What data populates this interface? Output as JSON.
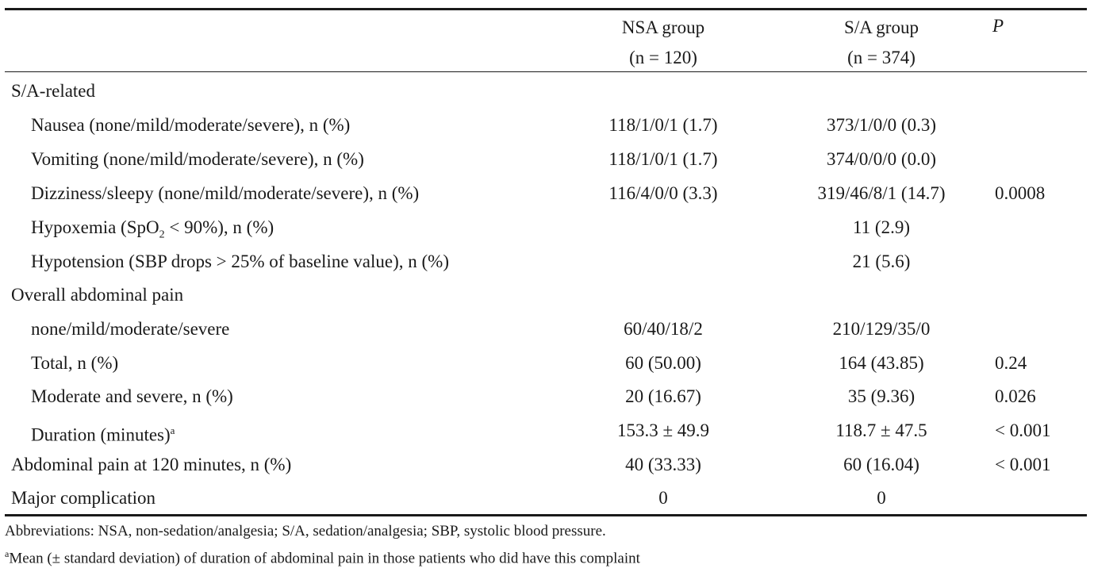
{
  "columns": {
    "nsa_line1": "NSA group",
    "nsa_line2": "(n = 120)",
    "sa_line1": "S/A group",
    "sa_line2": "(n = 374)",
    "p": "P"
  },
  "rows": [
    {
      "label": "S/A-related",
      "nsa": "",
      "sa": "",
      "p": ""
    },
    {
      "label": "Nausea (none/mild/moderate/severe), n (%)",
      "nsa": "118/1/0/1 (1.7)",
      "sa": "373/1/0/0 (0.3)",
      "p": ""
    },
    {
      "label": "Vomiting (none/mild/moderate/severe), n (%)",
      "nsa": "118/1/0/1 (1.7)",
      "sa": "374/0/0/0 (0.0)",
      "p": ""
    },
    {
      "label": "Dizziness/sleepy (none/mild/moderate/severe), n (%)",
      "nsa": "116/4/0/0 (3.3)",
      "sa": "319/46/8/1 (14.7)",
      "p": "0.0008"
    },
    {
      "label_pre": "Hypoxemia (SpO",
      "label_sub": "2",
      "label_post": " < 90%), n (%)",
      "nsa": "",
      "sa": "11 (2.9)",
      "p": ""
    },
    {
      "label": "Hypotension (SBP drops > 25% of baseline value), n (%)",
      "nsa": "",
      "sa": "21 (5.6)",
      "p": ""
    },
    {
      "label": "Overall abdominal pain",
      "nsa": "",
      "sa": "",
      "p": ""
    },
    {
      "label": "none/mild/moderate/severe",
      "nsa": "60/40/18/2",
      "sa": "210/129/35/0",
      "p": ""
    },
    {
      "label": "Total, n (%)",
      "nsa": "60 (50.00)",
      "sa": "164 (43.85)",
      "p": "0.24"
    },
    {
      "label": "Moderate and severe, n (%)",
      "nsa": "20 (16.67)",
      "sa": "35 (9.36)",
      "p": "0.026"
    },
    {
      "label": "Duration (minutes)",
      "label_sup": "a",
      "nsa": "153.3 ± 49.9",
      "sa": "118.7 ± 47.5",
      "p": "< 0.001"
    },
    {
      "label": "Abdominal pain at 120 minutes, n (%)",
      "nsa": "40 (33.33)",
      "sa": "60 (16.04)",
      "p": "< 0.001"
    },
    {
      "label": "Major complication",
      "nsa": "0",
      "sa": "0",
      "p": ""
    }
  ],
  "footnotes": {
    "abbreviations": "Abbreviations: NSA, non-sedation/analgesia; S/A, sedation/analgesia; SBP, systolic blood pressure.",
    "note_mark": "a",
    "note_text": "Mean (± standard deviation) of duration of abdominal pain in those patients who did have this complaint"
  }
}
